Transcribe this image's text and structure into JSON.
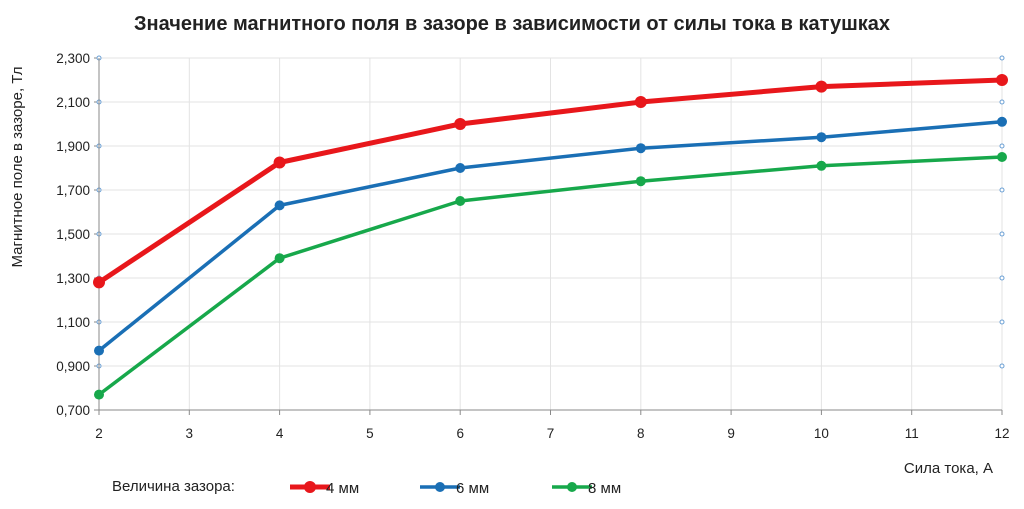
{
  "chart_data": {
    "type": "line",
    "title": "Значение магнитного поля в зазоре в зависимости от силы тока в катушках",
    "xlabel": "Сила тока, А",
    "ylabel": "Магнитное поле в зазоре, Тл",
    "x": [
      2,
      4,
      6,
      8,
      10,
      12
    ],
    "xlim": [
      2,
      12
    ],
    "ylim": [
      0.7,
      2.3
    ],
    "xticks": [
      "2",
      "3",
      "4",
      "5",
      "6",
      "7",
      "8",
      "9",
      "10",
      "11",
      "12"
    ],
    "yticks": [
      "0,700",
      "0,900",
      "1,100",
      "1,300",
      "1,500",
      "1,700",
      "1,900",
      "2,100",
      "2,300"
    ],
    "grid": true,
    "legend_title": "Величина зазора:",
    "legend_position": "bottom",
    "series": [
      {
        "name": "4 мм",
        "color": "#e8171b",
        "values": [
          1.28,
          1.825,
          2.0,
          2.1,
          2.17,
          2.2
        ]
      },
      {
        "name": "6 мм",
        "color": "#1a6fb5",
        "values": [
          0.97,
          1.63,
          1.8,
          1.89,
          1.94,
          2.01
        ]
      },
      {
        "name": "8 мм",
        "color": "#17a84b",
        "values": [
          0.77,
          1.39,
          1.65,
          1.74,
          1.81,
          1.85
        ]
      }
    ]
  }
}
